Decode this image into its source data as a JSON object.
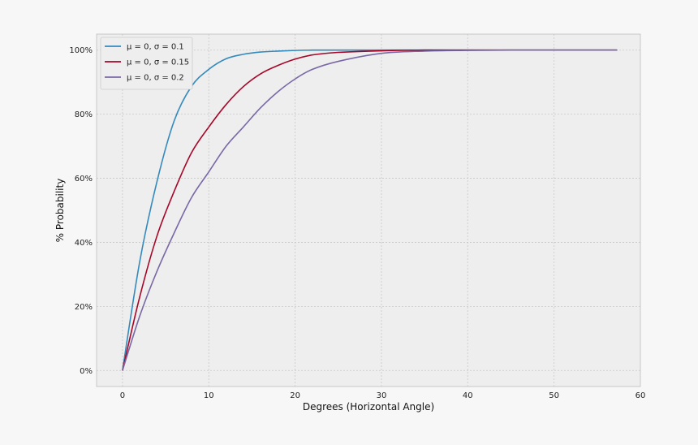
{
  "chart_data": {
    "type": "line",
    "xlabel": "Degrees (Horizontal Angle)",
    "ylabel": "% Probability",
    "xlim": [
      -3,
      60
    ],
    "ylim": [
      -5,
      105
    ],
    "x_ticks": [
      0,
      10,
      20,
      30,
      40,
      50,
      60
    ],
    "y_ticks": [
      0,
      20,
      40,
      60,
      80,
      100
    ],
    "y_tick_labels": [
      "0%",
      "20%",
      "40%",
      "60%",
      "80%",
      "100%"
    ],
    "grid": true,
    "legend_position": "top-left",
    "series": [
      {
        "name": "μ = 0, σ = 0.1",
        "color": "#348abd",
        "x": [
          0,
          2,
          4,
          6,
          8,
          10,
          12,
          14,
          16,
          18,
          20,
          22,
          25,
          30,
          35,
          40,
          45,
          50,
          57.3
        ],
        "y": [
          0,
          34,
          59,
          78,
          88.7,
          94,
          97.3,
          98.7,
          99.4,
          99.7,
          99.9,
          100,
          100,
          100,
          100,
          100,
          100,
          100,
          100
        ]
      },
      {
        "name": "μ = 0, σ = 0.15",
        "color": "#a60628",
        "x": [
          0,
          2,
          4,
          6,
          8,
          10,
          12,
          14,
          16,
          18,
          20,
          22,
          25,
          30,
          35,
          40,
          45,
          50,
          57.3
        ],
        "y": [
          0,
          23,
          42,
          56,
          68,
          76,
          83,
          88.6,
          92.6,
          95.2,
          97.2,
          98.5,
          99.3,
          99.8,
          100,
          100,
          100,
          100,
          100
        ]
      },
      {
        "name": "μ = 0, σ = 0.2",
        "color": "#7a68a6",
        "x": [
          0,
          2,
          4,
          6,
          8,
          10,
          12,
          14,
          16,
          18,
          20,
          22,
          25,
          30,
          35,
          40,
          45,
          50,
          57.3
        ],
        "y": [
          0,
          17,
          31,
          43,
          54,
          62,
          70,
          76,
          82,
          87,
          91,
          94,
          96.5,
          99,
          99.7,
          99.9,
          100,
          100,
          100
        ]
      }
    ]
  }
}
